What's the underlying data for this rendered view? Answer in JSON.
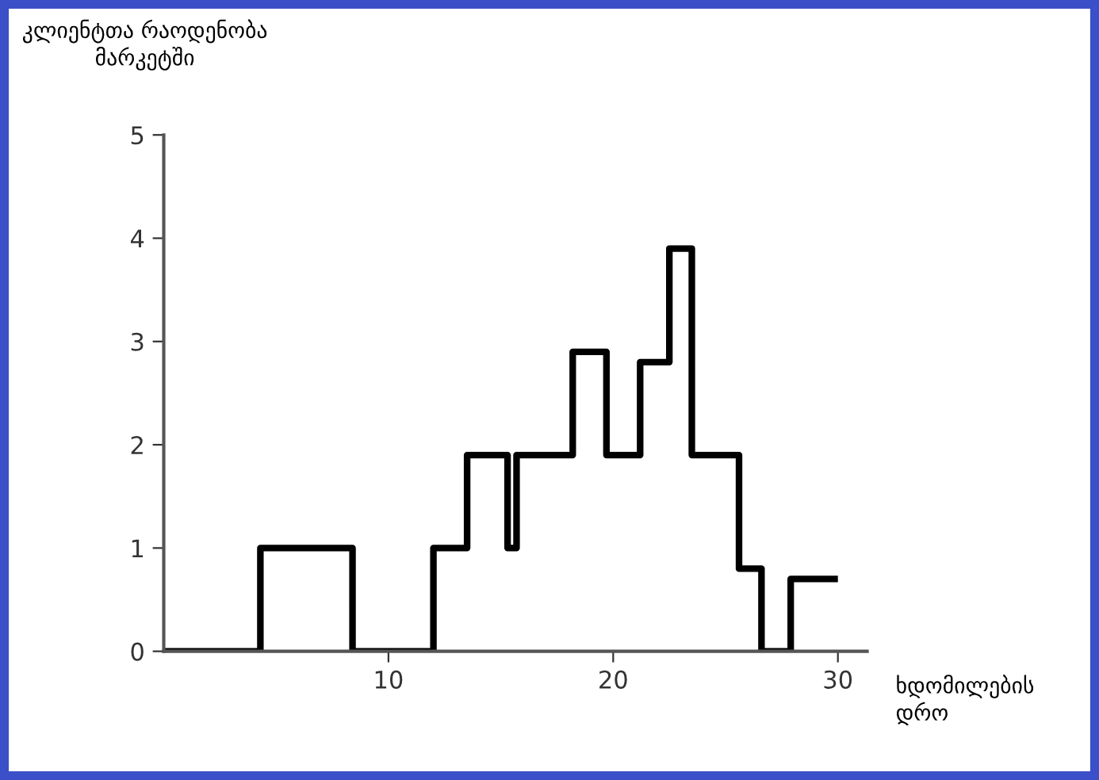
{
  "chart_data": {
    "type": "histogram",
    "ylabel": "კლიენტთა რაოდენობა\nმარკეტში",
    "xlabel": "ხდომილების\nდრო",
    "bins": [
      0,
      4.3,
      8.4,
      12,
      13.5,
      15.3,
      15.7,
      18.2,
      19.7,
      21.2,
      22.5,
      23.5,
      25.6,
      26.6,
      27.9,
      30
    ],
    "values": [
      0,
      1,
      0,
      1,
      1.9,
      1,
      1.9,
      2.9,
      1.9,
      2.8,
      3.9,
      1.9,
      0.8,
      0,
      0.7
    ],
    "color": "#000000",
    "xlim": [
      0,
      31.3
    ],
    "ylim": [
      0,
      5
    ],
    "xticks": [
      10,
      20,
      30
    ],
    "yticks": [
      0,
      1,
      2,
      3,
      4,
      5
    ],
    "grid": false,
    "legend": false
  }
}
